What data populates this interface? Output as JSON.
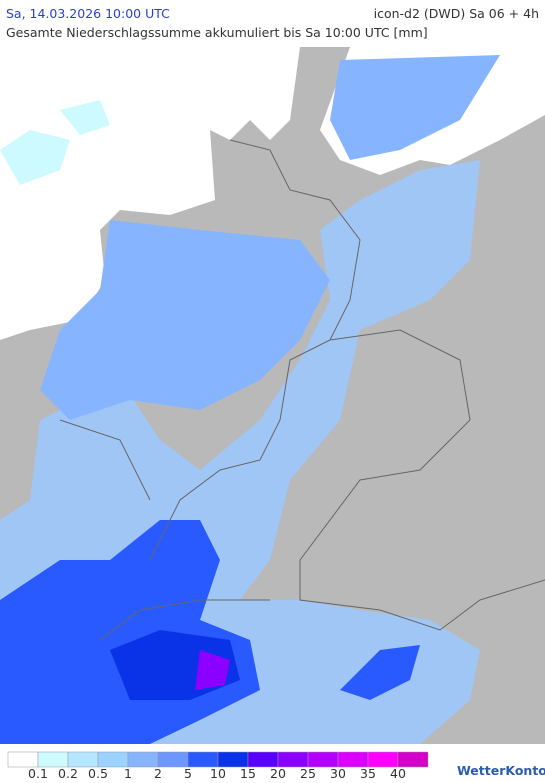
{
  "header": {
    "left": "Sa, 14.03.2026 10:00 UTC",
    "right": "icon-d2 (DWD) Sa 06 + 4h",
    "subtitle": "Gesamte Niederschlagssumme akkumuliert bis Sa 10:00 UTC [mm]"
  },
  "legend": {
    "labels": [
      "0.1",
      "0.2",
      "0.5",
      "1",
      "2",
      "5",
      "10",
      "15",
      "20",
      "25",
      "30",
      "35",
      "40"
    ],
    "colors": [
      "#ffffff",
      "#cdfaff",
      "#b4e6ff",
      "#9bd2ff",
      "#87b4ff",
      "#6e96ff",
      "#285aff",
      "#0a32e6",
      "#5a00ff",
      "#8c00ff",
      "#b400ff",
      "#dc00ff",
      "#ff00ff",
      "#d200c8"
    ]
  },
  "brand": "WetterKontor"
}
